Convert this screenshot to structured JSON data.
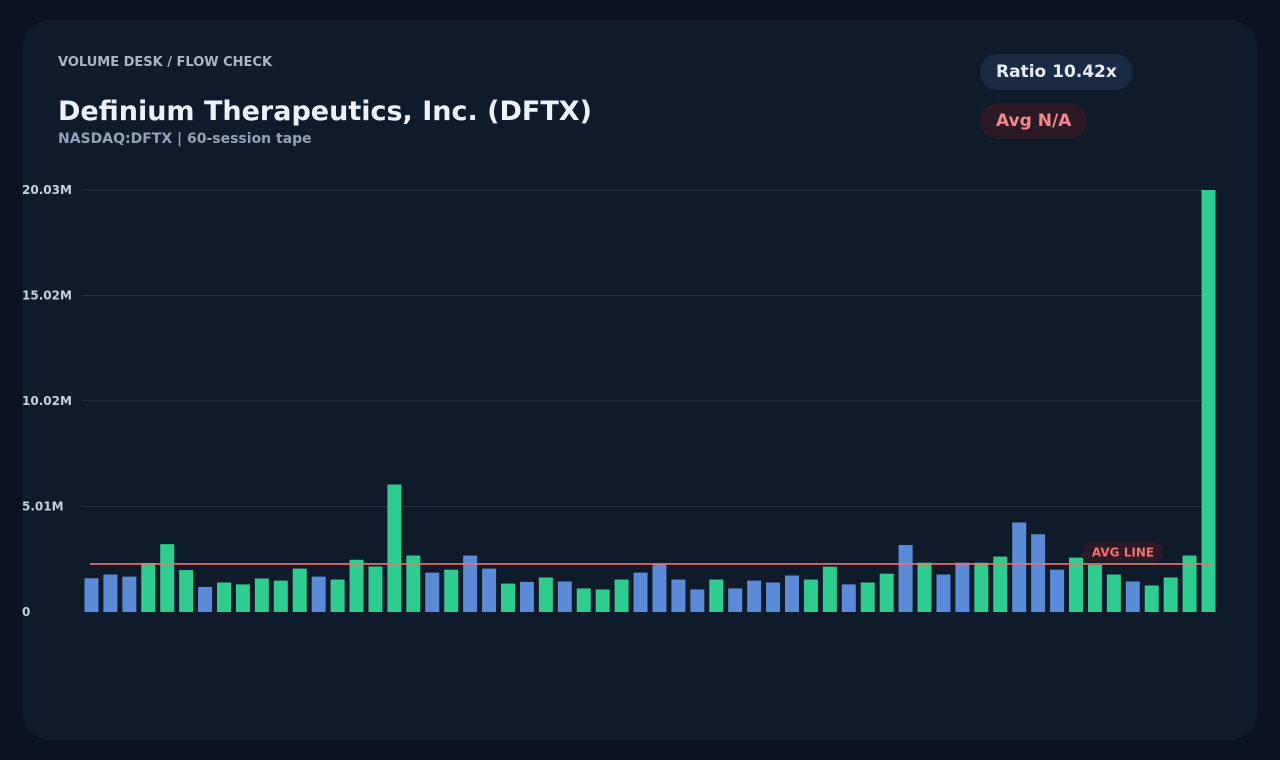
{
  "header": {
    "breadcrumb": "VOLUME DESK / FLOW CHECK",
    "title": "Definium Therapeutics, Inc. (DFTX)",
    "subtitle": "NASDAQ:DFTX | 60-session tape"
  },
  "badges": {
    "ratio": "Ratio 10.42x",
    "avg": "Avg N/A"
  },
  "colors": {
    "up": "#2ecc8f",
    "down": "#5b8bd6",
    "avg_line": "#f07070",
    "grid": "#243246",
    "background": "#0f1a2b"
  },
  "chart_data": {
    "type": "bar",
    "title": "",
    "xlabel": "",
    "ylabel": "",
    "ylim": [
      0,
      20.03
    ],
    "unit": "M",
    "y_ticks": [
      "0",
      "5.01M",
      "10.02M",
      "15.02M",
      "20.03M"
    ],
    "y_tick_values": [
      0,
      5.01,
      10.02,
      15.02,
      20.03
    ],
    "avg_line": {
      "label": "AVG LINE",
      "value": 2.28
    },
    "series": [
      {
        "values": [
          1.6,
          1.78,
          1.68,
          2.33,
          3.22,
          1.99,
          1.19,
          1.4,
          1.31,
          1.59,
          1.49,
          2.06,
          1.68,
          1.54,
          2.48,
          2.16,
          6.05,
          2.68,
          1.87,
          2.01,
          2.68,
          2.06,
          1.35,
          1.43,
          1.64,
          1.45,
          1.12,
          1.07,
          1.54,
          1.87,
          2.29,
          1.54,
          1.07,
          1.54,
          1.12,
          1.49,
          1.4,
          1.73,
          1.54,
          2.15,
          1.31,
          1.4,
          1.82,
          3.18,
          2.34,
          1.78,
          2.34,
          2.34,
          2.63,
          4.25,
          3.69,
          2.01,
          2.58,
          2.24,
          1.78,
          1.45,
          1.26,
          1.64,
          2.68,
          20.03
        ],
        "directions": [
          "down",
          "down",
          "down",
          "up",
          "up",
          "up",
          "down",
          "up",
          "up",
          "up",
          "up",
          "up",
          "down",
          "up",
          "up",
          "up",
          "up",
          "up",
          "down",
          "up",
          "down",
          "down",
          "up",
          "down",
          "up",
          "down",
          "up",
          "up",
          "up",
          "down",
          "down",
          "down",
          "down",
          "up",
          "down",
          "down",
          "down",
          "down",
          "up",
          "up",
          "down",
          "up",
          "up",
          "down",
          "up",
          "down",
          "down",
          "up",
          "up",
          "down",
          "down",
          "down",
          "up",
          "up",
          "up",
          "down",
          "up",
          "up",
          "up",
          "up"
        ]
      }
    ]
  }
}
